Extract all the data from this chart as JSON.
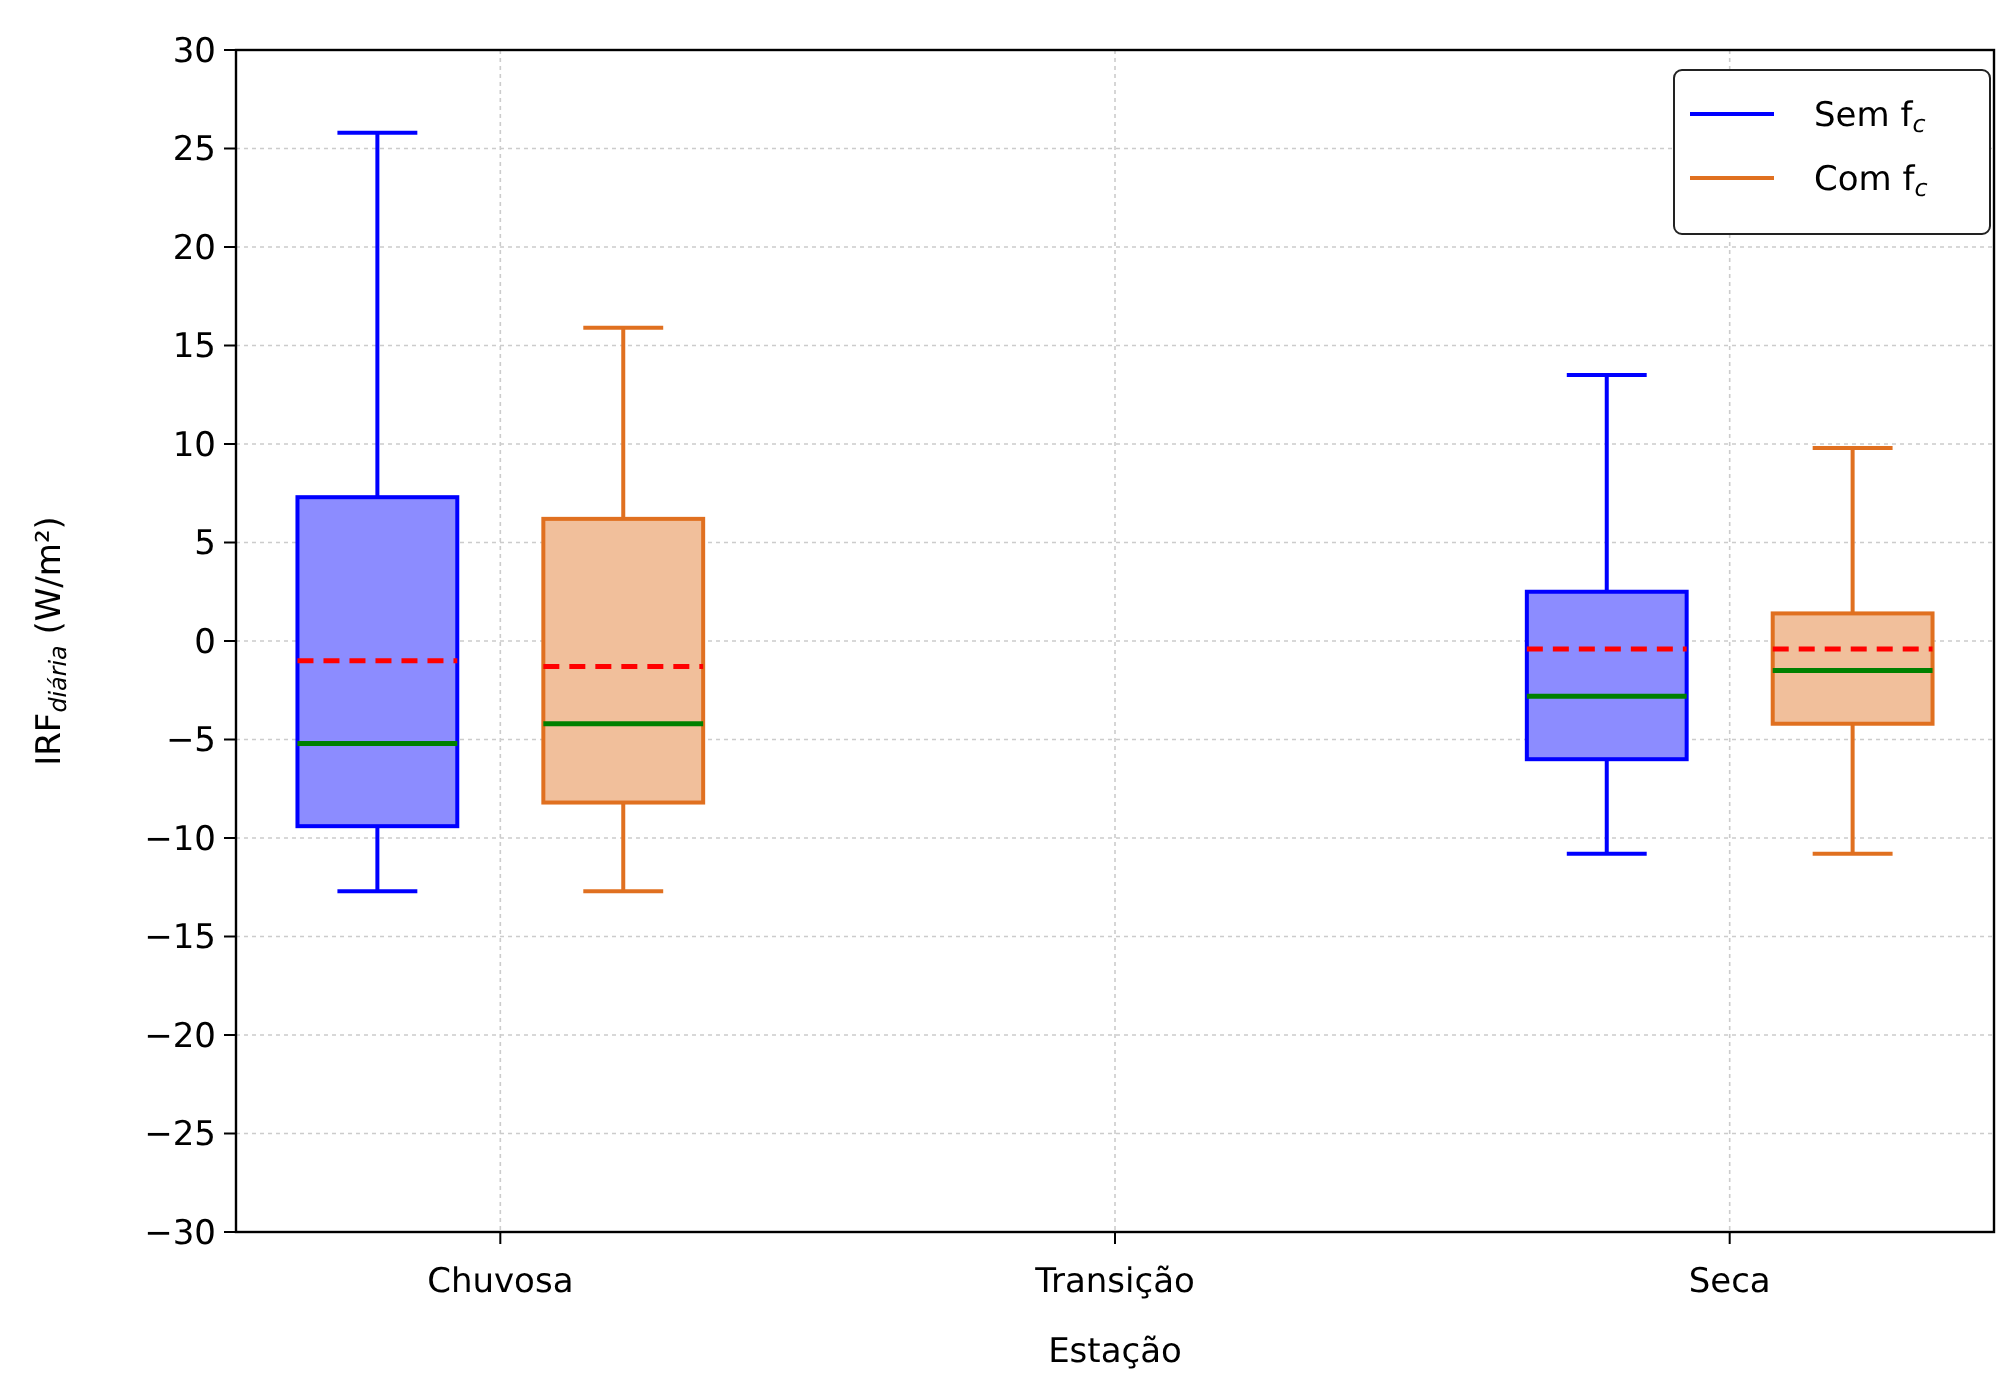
{
  "chart_data": {
    "type": "box",
    "xlabel": "Estação",
    "ylabel": "IRF$_{diária}$ (W/m²)",
    "categories": [
      "Chuvosa",
      "Transição",
      "Seca"
    ],
    "series": [
      {
        "name": "Sem f$_{c}$",
        "color": "#0000ff",
        "boxes": [
          {
            "low": -12.7,
            "q1": -9.4,
            "median": -5.2,
            "q3": 7.3,
            "high": 25.8,
            "mean": -1.0
          },
          null,
          {
            "low": -10.8,
            "q1": -6.0,
            "median": -2.8,
            "q3": 2.5,
            "high": 13.5,
            "mean": -0.4
          }
        ]
      },
      {
        "name": "Com f$_{c}$",
        "color": "#e07020",
        "boxes": [
          {
            "low": -12.7,
            "q1": -8.2,
            "median": -4.2,
            "q3": 6.2,
            "high": 15.9,
            "mean": -1.3
          },
          null,
          {
            "low": -10.8,
            "q1": -4.2,
            "median": -1.5,
            "q3": 1.4,
            "high": 9.8,
            "mean": -0.4
          }
        ]
      }
    ],
    "ylim": [
      -30,
      30
    ],
    "yticks": [
      -30,
      -25,
      -20,
      -15,
      -10,
      -5,
      0,
      5,
      10,
      15,
      20,
      25,
      30
    ],
    "grid": true,
    "legend": "top right"
  }
}
